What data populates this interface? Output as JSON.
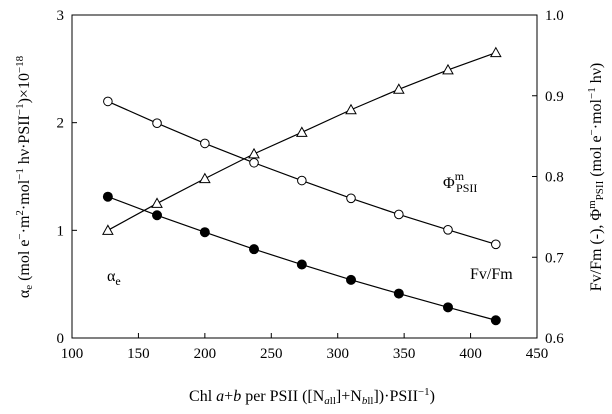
{
  "chart_data": {
    "type": "line",
    "x_axis": {
      "label": "Chl a+b per PSII ([Nall]+Nbll])·PSII−1)",
      "ticks": [
        100,
        150,
        200,
        250,
        300,
        350,
        400,
        450
      ],
      "range": [
        100,
        450
      ]
    },
    "y_left": {
      "label": "αe (mol e−·m2·mol−1 hν·PSII−1)×10−18",
      "ticks": [
        0,
        1,
        2,
        3
      ],
      "range": [
        0,
        3
      ]
    },
    "y_right": {
      "label": "Fv/Fm (-), ΦmPSII (mol e−·mol−1 hν)",
      "ticks": [
        "0.6",
        "0.7",
        "0.8",
        "0.9",
        "1.0"
      ],
      "range": [
        0.6,
        1.0
      ]
    },
    "x": [
      127,
      164,
      200,
      237,
      273,
      310,
      346,
      383,
      419
    ],
    "series": [
      {
        "name": "αe",
        "axis": "left",
        "marker": "open-triangle",
        "values": [
          1.0,
          1.25,
          1.48,
          1.71,
          1.91,
          2.12,
          2.31,
          2.49,
          2.65
        ]
      },
      {
        "name": "ΦmPSII",
        "axis": "right",
        "marker": "open-circle",
        "values": [
          0.893,
          0.866,
          0.841,
          0.817,
          0.795,
          0.773,
          0.753,
          0.734,
          0.716
        ]
      },
      {
        "name": "Fv/Fm",
        "axis": "right",
        "marker": "filled-circle",
        "values": [
          0.775,
          0.752,
          0.731,
          0.71,
          0.691,
          0.672,
          0.655,
          0.638,
          0.622
        ]
      }
    ],
    "annotations": {
      "alpha": "αe",
      "phi": "ΦmPSII",
      "fvfm": "Fv/Fm"
    },
    "grid": false
  }
}
